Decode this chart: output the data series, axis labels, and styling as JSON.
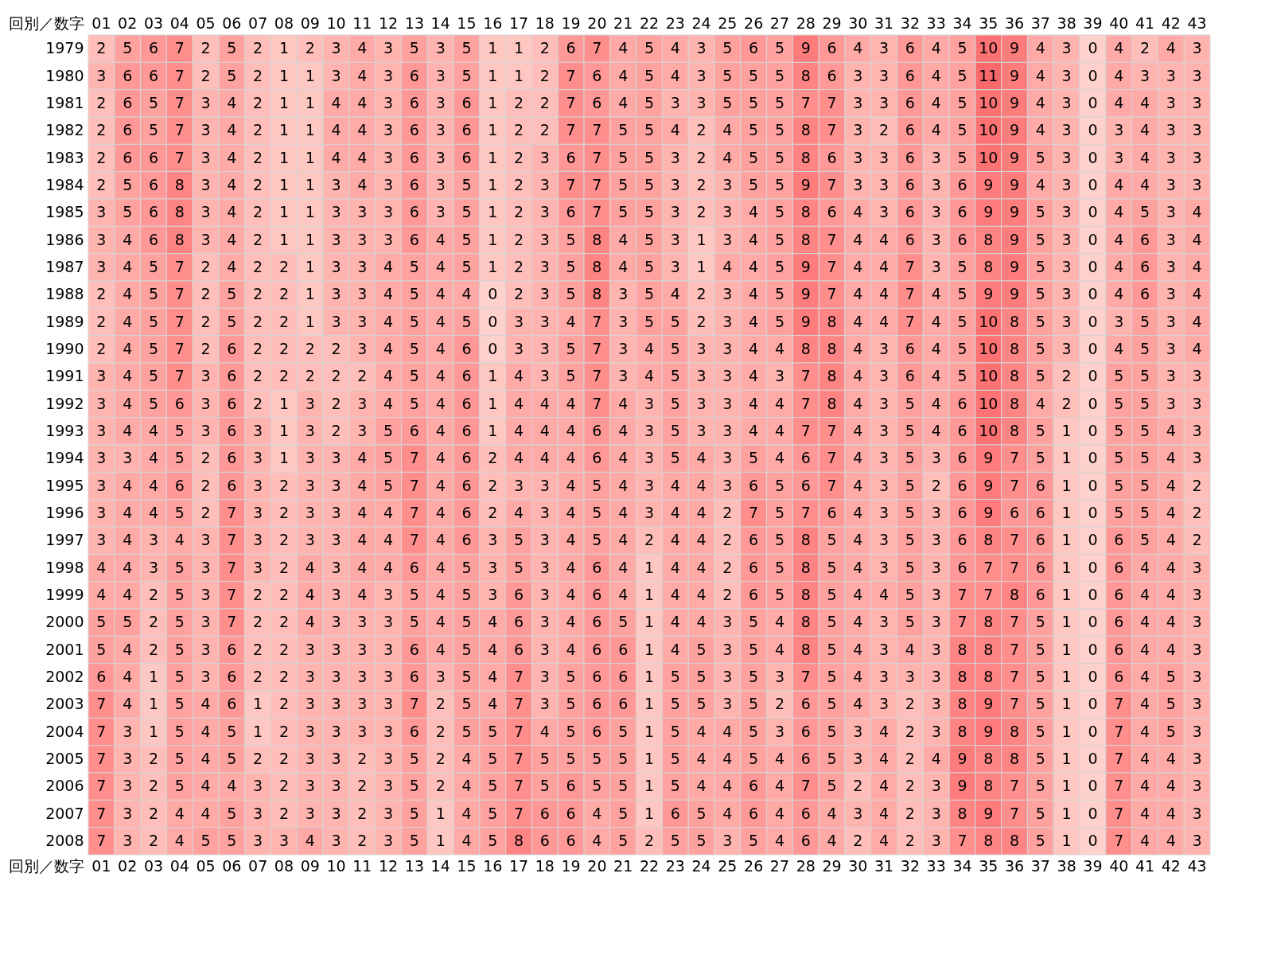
{
  "chart_data": {
    "type": "heatmap",
    "xlabel": "回別／数字",
    "color": "#f8696b",
    "data_labels": true,
    "categories": [
      "01",
      "02",
      "03",
      "04",
      "05",
      "06",
      "07",
      "08",
      "09",
      "10",
      "11",
      "12",
      "13",
      "14",
      "15",
      "16",
      "17",
      "18",
      "19",
      "20",
      "21",
      "22",
      "23",
      "24",
      "25",
      "26",
      "27",
      "28",
      "29",
      "30",
      "31",
      "32",
      "33",
      "34",
      "35",
      "36",
      "37",
      "38",
      "39",
      "40",
      "41",
      "42",
      "43"
    ],
    "y_categories": [
      "1979",
      "1980",
      "1981",
      "1982",
      "1983",
      "1984",
      "1985",
      "1986",
      "1987",
      "1988",
      "1989",
      "1990",
      "1991",
      "1992",
      "1993",
      "1994",
      "1995",
      "1996",
      "1997",
      "1998",
      "1999",
      "2000",
      "2001",
      "2002",
      "2003",
      "2004",
      "2005",
      "2006",
      "2007",
      "2008"
    ],
    "cells": [
      [
        2,
        5,
        6,
        7,
        2,
        5,
        2,
        1,
        2,
        3,
        4,
        3,
        5,
        3,
        5,
        1,
        1,
        2,
        6,
        7,
        4,
        5,
        4,
        3,
        5,
        6,
        5,
        9,
        6,
        4,
        3,
        6,
        4,
        5,
        10,
        9,
        4,
        3,
        0,
        4,
        2,
        4,
        3
      ],
      [
        3,
        6,
        6,
        7,
        2,
        5,
        2,
        1,
        1,
        3,
        4,
        3,
        6,
        3,
        5,
        1,
        1,
        2,
        7,
        6,
        4,
        5,
        4,
        3,
        5,
        5,
        5,
        8,
        6,
        3,
        3,
        6,
        4,
        5,
        11,
        9,
        4,
        3,
        0,
        4,
        3,
        3,
        3
      ],
      [
        2,
        6,
        5,
        7,
        3,
        4,
        2,
        1,
        1,
        4,
        4,
        3,
        6,
        3,
        6,
        1,
        2,
        2,
        7,
        6,
        4,
        5,
        3,
        3,
        5,
        5,
        5,
        7,
        7,
        3,
        3,
        6,
        4,
        5,
        10,
        9,
        4,
        3,
        0,
        4,
        4,
        3,
        3
      ],
      [
        2,
        6,
        5,
        7,
        3,
        4,
        2,
        1,
        1,
        4,
        4,
        3,
        6,
        3,
        6,
        1,
        2,
        2,
        7,
        7,
        5,
        5,
        4,
        2,
        4,
        5,
        5,
        8,
        7,
        3,
        2,
        6,
        4,
        5,
        10,
        9,
        4,
        3,
        0,
        3,
        4,
        3,
        3
      ],
      [
        2,
        6,
        6,
        7,
        3,
        4,
        2,
        1,
        1,
        4,
        4,
        3,
        6,
        3,
        6,
        1,
        2,
        3,
        6,
        7,
        5,
        5,
        3,
        2,
        4,
        5,
        5,
        8,
        6,
        3,
        3,
        6,
        3,
        5,
        10,
        9,
        5,
        3,
        0,
        3,
        4,
        3,
        3
      ],
      [
        2,
        5,
        6,
        8,
        3,
        4,
        2,
        1,
        1,
        3,
        4,
        3,
        6,
        3,
        5,
        1,
        2,
        3,
        7,
        7,
        5,
        5,
        3,
        2,
        3,
        5,
        5,
        9,
        7,
        3,
        3,
        6,
        3,
        6,
        9,
        9,
        4,
        3,
        0,
        4,
        4,
        3,
        3
      ],
      [
        3,
        5,
        6,
        8,
        3,
        4,
        2,
        1,
        1,
        3,
        3,
        3,
        6,
        3,
        5,
        1,
        2,
        3,
        6,
        7,
        5,
        5,
        3,
        2,
        3,
        4,
        5,
        8,
        6,
        4,
        3,
        6,
        3,
        6,
        9,
        9,
        5,
        3,
        0,
        4,
        5,
        3,
        4
      ],
      [
        3,
        4,
        6,
        8,
        3,
        4,
        2,
        1,
        1,
        3,
        3,
        3,
        6,
        4,
        5,
        1,
        2,
        3,
        5,
        8,
        4,
        5,
        3,
        1,
        3,
        4,
        5,
        8,
        7,
        4,
        4,
        6,
        3,
        6,
        8,
        9,
        5,
        3,
        0,
        4,
        6,
        3,
        4
      ],
      [
        3,
        4,
        5,
        7,
        2,
        4,
        2,
        2,
        1,
        3,
        3,
        4,
        5,
        4,
        5,
        1,
        2,
        3,
        5,
        8,
        4,
        5,
        3,
        1,
        4,
        4,
        5,
        9,
        7,
        4,
        4,
        7,
        3,
        5,
        8,
        9,
        5,
        3,
        0,
        4,
        6,
        3,
        4
      ],
      [
        2,
        4,
        5,
        7,
        2,
        5,
        2,
        2,
        1,
        3,
        3,
        4,
        5,
        4,
        4,
        0,
        2,
        3,
        5,
        8,
        3,
        5,
        4,
        2,
        3,
        4,
        5,
        9,
        7,
        4,
        4,
        7,
        4,
        5,
        9,
        9,
        5,
        3,
        0,
        4,
        6,
        3,
        4
      ],
      [
        2,
        4,
        5,
        7,
        2,
        5,
        2,
        2,
        1,
        3,
        3,
        4,
        5,
        4,
        5,
        0,
        3,
        3,
        4,
        7,
        3,
        5,
        5,
        2,
        3,
        4,
        5,
        9,
        8,
        4,
        4,
        7,
        4,
        5,
        10,
        8,
        5,
        3,
        0,
        3,
        5,
        3,
        4
      ],
      [
        2,
        4,
        5,
        7,
        2,
        6,
        2,
        2,
        2,
        2,
        3,
        4,
        5,
        4,
        6,
        0,
        3,
        3,
        5,
        7,
        3,
        4,
        5,
        3,
        3,
        4,
        4,
        8,
        8,
        4,
        3,
        6,
        4,
        5,
        10,
        8,
        5,
        3,
        0,
        4,
        5,
        3,
        4
      ],
      [
        3,
        4,
        5,
        7,
        3,
        6,
        2,
        2,
        2,
        2,
        2,
        4,
        5,
        4,
        6,
        1,
        4,
        3,
        5,
        7,
        3,
        4,
        5,
        3,
        3,
        4,
        3,
        7,
        8,
        4,
        3,
        6,
        4,
        5,
        10,
        8,
        5,
        2,
        0,
        5,
        5,
        3,
        3
      ],
      [
        3,
        4,
        5,
        6,
        3,
        6,
        2,
        1,
        3,
        2,
        3,
        4,
        5,
        4,
        6,
        1,
        4,
        4,
        4,
        7,
        4,
        3,
        5,
        3,
        3,
        4,
        4,
        7,
        8,
        4,
        3,
        5,
        4,
        6,
        10,
        8,
        4,
        2,
        0,
        5,
        5,
        3,
        3
      ],
      [
        3,
        4,
        4,
        5,
        3,
        6,
        3,
        1,
        3,
        2,
        3,
        5,
        6,
        4,
        6,
        1,
        4,
        4,
        4,
        6,
        4,
        3,
        5,
        3,
        3,
        4,
        4,
        7,
        7,
        4,
        3,
        5,
        4,
        6,
        10,
        8,
        5,
        1,
        0,
        5,
        5,
        4,
        3
      ],
      [
        3,
        3,
        4,
        5,
        2,
        6,
        3,
        1,
        3,
        3,
        4,
        5,
        7,
        4,
        6,
        2,
        4,
        4,
        4,
        6,
        4,
        3,
        5,
        4,
        3,
        5,
        4,
        6,
        7,
        4,
        3,
        5,
        3,
        6,
        9,
        7,
        5,
        1,
        0,
        5,
        5,
        4,
        3
      ],
      [
        3,
        4,
        4,
        6,
        2,
        6,
        3,
        2,
        3,
        3,
        4,
        5,
        7,
        4,
        6,
        2,
        3,
        3,
        4,
        5,
        4,
        3,
        4,
        4,
        3,
        6,
        5,
        6,
        7,
        4,
        3,
        5,
        2,
        6,
        9,
        7,
        6,
        1,
        0,
        5,
        5,
        4,
        2
      ],
      [
        3,
        4,
        4,
        5,
        2,
        7,
        3,
        2,
        3,
        3,
        4,
        4,
        7,
        4,
        6,
        2,
        4,
        3,
        4,
        5,
        4,
        3,
        4,
        4,
        2,
        7,
        5,
        7,
        6,
        4,
        3,
        5,
        3,
        6,
        9,
        6,
        6,
        1,
        0,
        5,
        5,
        4,
        2
      ],
      [
        3,
        4,
        3,
        4,
        3,
        7,
        3,
        2,
        3,
        3,
        4,
        4,
        7,
        4,
        6,
        3,
        5,
        3,
        4,
        5,
        4,
        2,
        4,
        4,
        2,
        6,
        5,
        8,
        5,
        4,
        3,
        5,
        3,
        6,
        8,
        7,
        6,
        1,
        0,
        6,
        5,
        4,
        2
      ],
      [
        4,
        4,
        3,
        5,
        3,
        7,
        3,
        2,
        4,
        3,
        4,
        4,
        6,
        4,
        5,
        3,
        5,
        3,
        4,
        6,
        4,
        1,
        4,
        4,
        2,
        6,
        5,
        8,
        5,
        4,
        3,
        5,
        3,
        6,
        7,
        7,
        6,
        1,
        0,
        6,
        4,
        4,
        3
      ],
      [
        4,
        4,
        2,
        5,
        3,
        7,
        2,
        2,
        4,
        3,
        4,
        3,
        5,
        4,
        5,
        3,
        6,
        3,
        4,
        6,
        4,
        1,
        4,
        4,
        2,
        6,
        5,
        8,
        5,
        4,
        4,
        5,
        3,
        7,
        7,
        8,
        6,
        1,
        0,
        6,
        4,
        4,
        3
      ],
      [
        5,
        5,
        2,
        5,
        3,
        7,
        2,
        2,
        4,
        3,
        3,
        3,
        5,
        4,
        5,
        4,
        6,
        3,
        4,
        6,
        5,
        1,
        4,
        4,
        3,
        5,
        4,
        8,
        5,
        4,
        3,
        5,
        3,
        7,
        8,
        7,
        5,
        1,
        0,
        6,
        4,
        4,
        3
      ],
      [
        5,
        4,
        2,
        5,
        3,
        6,
        2,
        2,
        3,
        3,
        3,
        3,
        6,
        4,
        5,
        4,
        6,
        3,
        4,
        6,
        6,
        1,
        4,
        5,
        3,
        5,
        4,
        8,
        5,
        4,
        3,
        4,
        3,
        8,
        8,
        7,
        5,
        1,
        0,
        6,
        4,
        4,
        3
      ],
      [
        6,
        4,
        1,
        5,
        3,
        6,
        2,
        2,
        3,
        3,
        3,
        3,
        6,
        3,
        5,
        4,
        7,
        3,
        5,
        6,
        6,
        1,
        5,
        5,
        3,
        5,
        3,
        7,
        5,
        4,
        3,
        3,
        3,
        8,
        8,
        7,
        5,
        1,
        0,
        6,
        4,
        5,
        3
      ],
      [
        7,
        4,
        1,
        5,
        4,
        6,
        1,
        2,
        3,
        3,
        3,
        3,
        7,
        2,
        5,
        4,
        7,
        3,
        5,
        6,
        6,
        1,
        5,
        5,
        3,
        5,
        2,
        6,
        5,
        4,
        3,
        2,
        3,
        8,
        9,
        7,
        5,
        1,
        0,
        7,
        4,
        5,
        3
      ],
      [
        7,
        3,
        1,
        5,
        4,
        5,
        1,
        2,
        3,
        3,
        3,
        3,
        6,
        2,
        5,
        5,
        7,
        4,
        5,
        6,
        5,
        1,
        5,
        4,
        4,
        5,
        3,
        6,
        5,
        3,
        4,
        2,
        3,
        8,
        9,
        8,
        5,
        1,
        0,
        7,
        4,
        5,
        3
      ],
      [
        7,
        3,
        2,
        5,
        4,
        5,
        2,
        2,
        3,
        3,
        2,
        3,
        5,
        2,
        4,
        5,
        7,
        5,
        5,
        5,
        5,
        1,
        5,
        4,
        4,
        5,
        4,
        6,
        5,
        3,
        4,
        2,
        4,
        9,
        8,
        8,
        5,
        1,
        0,
        7,
        4,
        4,
        3
      ],
      [
        7,
        3,
        2,
        5,
        4,
        4,
        3,
        2,
        3,
        3,
        2,
        3,
        5,
        2,
        4,
        5,
        7,
        5,
        6,
        5,
        5,
        1,
        5,
        4,
        4,
        6,
        4,
        7,
        5,
        2,
        4,
        2,
        3,
        9,
        8,
        7,
        5,
        1,
        0,
        7,
        4,
        4,
        3
      ],
      [
        7,
        3,
        2,
        4,
        4,
        5,
        3,
        2,
        3,
        3,
        2,
        3,
        5,
        1,
        4,
        5,
        7,
        6,
        6,
        4,
        5,
        1,
        6,
        5,
        4,
        6,
        4,
        6,
        4,
        3,
        4,
        2,
        3,
        8,
        9,
        7,
        5,
        1,
        0,
        7,
        4,
        4,
        3
      ],
      [
        7,
        3,
        2,
        4,
        5,
        5,
        3,
        3,
        4,
        3,
        2,
        3,
        5,
        1,
        4,
        5,
        8,
        6,
        6,
        4,
        5,
        2,
        5,
        5,
        3,
        5,
        4,
        6,
        4,
        2,
        4,
        2,
        3,
        7,
        8,
        8,
        5,
        1,
        0,
        7,
        4,
        4,
        3
      ]
    ]
  }
}
